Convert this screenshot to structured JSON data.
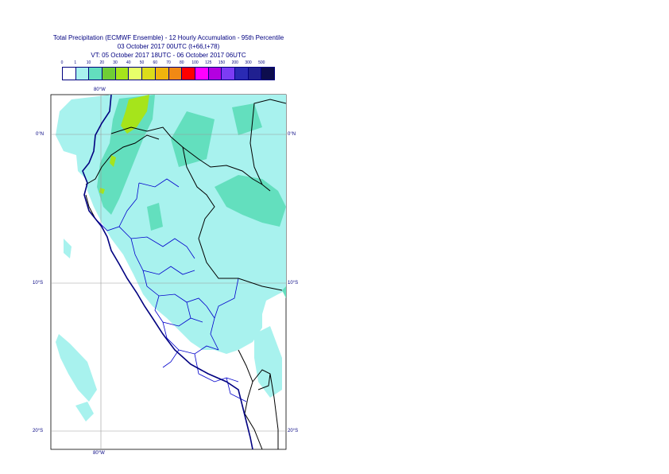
{
  "title": {
    "line1": "Total Precipitation (ECMWF Ensemble) - 12 Hourly Accumulation - 95th Percentile",
    "line2": "03 October 2017 00UTC (t+66,t+78)",
    "line3": "VT: 05 October 2017 18UTC - 06 October 2017 06UTC"
  },
  "legend": {
    "labels": [
      "0",
      "1",
      "10",
      "20",
      "30",
      "40",
      "50",
      "60",
      "70",
      "80",
      "100",
      "125",
      "150",
      "200",
      "300",
      "500"
    ],
    "colors": [
      "#ffffff",
      "#a8f2ee",
      "#63dfbe",
      "#6fce35",
      "#a6e41b",
      "#e8ff6a",
      "#dcdc1a",
      "#f1b40d",
      "#f28914",
      "#ff0000",
      "#ff00ff",
      "#b400e0",
      "#7c3cf4",
      "#2a2ab4",
      "#202090",
      "#0d0d4d"
    ]
  },
  "axes": {
    "lon_top": "80°W",
    "lon_bottom": "80°W",
    "lat_labels": [
      "0°N",
      "10°S",
      "20°S"
    ]
  },
  "colors": {
    "light_precip": "#a8f2ee",
    "moderate_precip": "#63dfbe",
    "heavy_precip": "#a6e41b",
    "country_border": "#000000",
    "region_border": "#0000cc",
    "coastline": "#000080",
    "grid": "#999999"
  }
}
